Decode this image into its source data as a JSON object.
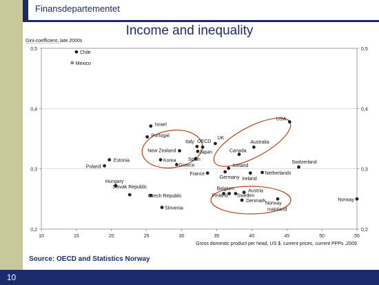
{
  "header": {
    "ministry": "Finansdepartementet"
  },
  "slide": {
    "title": "Income and inequality",
    "source": "Source: OECD and Statistics Norway",
    "page_number": "10"
  },
  "colors": {
    "navy": "#1b2a6b",
    "olive": "#c9c89c",
    "ellipse": "#b5451b",
    "point": "#222222",
    "grid": "#cccccc"
  },
  "chart_data": {
    "type": "scatter",
    "title": "Income and inequality",
    "ylabel": "Gini-coefficient, late 2000s",
    "xlabel": "Gross domestic product per head, US $, current prices, current PPPs ,2009",
    "xlim": [
      10,
      55
    ],
    "ylim": [
      0.2,
      0.5
    ],
    "xticks": [
      "10",
      "15",
      "20",
      "25",
      "30",
      "35",
      "40",
      "45",
      "50",
      "55"
    ],
    "yticks": [
      "0,2",
      "0,3",
      "0,4",
      "0,5"
    ],
    "grid": "horizontal",
    "points": [
      {
        "label": "Chile",
        "x": 15.0,
        "y": 0.494
      },
      {
        "label": "Mexico",
        "x": 14.4,
        "y": 0.476
      },
      {
        "label": "Israel",
        "x": 25.6,
        "y": 0.371
      },
      {
        "label": "Portugal",
        "x": 25.1,
        "y": 0.353
      },
      {
        "label": "Italy",
        "x": 32.2,
        "y": 0.337
      },
      {
        "label": "OECD",
        "x": 33.0,
        "y": 0.336
      },
      {
        "label": "UK",
        "x": 34.8,
        "y": 0.342
      },
      {
        "label": "New Zealand",
        "x": 29.7,
        "y": 0.33
      },
      {
        "label": "Japan",
        "x": 32.3,
        "y": 0.329
      },
      {
        "label": "Poland",
        "x": 19.0,
        "y": 0.305
      },
      {
        "label": "Estonia",
        "x": 19.7,
        "y": 0.315
      },
      {
        "label": "Korea",
        "x": 27.0,
        "y": 0.315
      },
      {
        "label": "Spain",
        "x": 32.0,
        "y": 0.317
      },
      {
        "label": "Greece",
        "x": 29.3,
        "y": 0.307
      },
      {
        "label": "Australia",
        "x": 40.3,
        "y": 0.336
      },
      {
        "label": "Canada",
        "x": 38.2,
        "y": 0.324
      },
      {
        "label": "USA",
        "x": 45.4,
        "y": 0.378
      },
      {
        "label": "Iceland",
        "x": 36.7,
        "y": 0.301
      },
      {
        "label": "Switzerland",
        "x": 46.7,
        "y": 0.303
      },
      {
        "label": "Netherlands",
        "x": 41.5,
        "y": 0.294
      },
      {
        "label": "Ireland",
        "x": 39.8,
        "y": 0.293
      },
      {
        "label": "Germany",
        "x": 36.2,
        "y": 0.295
      },
      {
        "label": "France",
        "x": 33.7,
        "y": 0.293
      },
      {
        "label": "Hungary",
        "x": 20.6,
        "y": 0.272
      },
      {
        "label": "Slovak Republic",
        "x": 22.6,
        "y": 0.257
      },
      {
        "label": "Czech Republic",
        "x": 25.6,
        "y": 0.256
      },
      {
        "label": "Slovenia",
        "x": 27.2,
        "y": 0.236
      },
      {
        "label": "Belgium",
        "x": 36.0,
        "y": 0.259
      },
      {
        "label": "Austria",
        "x": 38.9,
        "y": 0.261
      },
      {
        "label": "Finland",
        "x": 36.8,
        "y": 0.259
      },
      {
        "label": "Sweden",
        "x": 37.7,
        "y": 0.259
      },
      {
        "label": "Denmark",
        "x": 38.6,
        "y": 0.248
      },
      {
        "label": "Norway mainland",
        "x": 43.7,
        "y": 0.25
      },
      {
        "label": "Norway",
        "x": 55.0,
        "y": 0.25
      }
    ],
    "ellipses": [
      "Southern Europe / Japan group",
      "Anglo-Saxon group",
      "Nordic group"
    ]
  }
}
